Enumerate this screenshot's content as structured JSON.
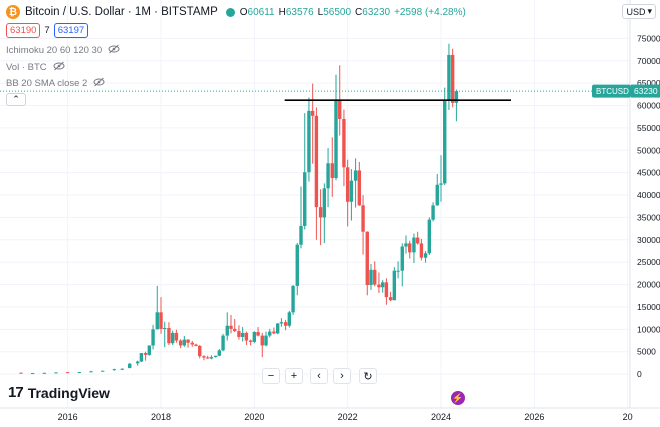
{
  "header": {
    "logo_glyph": "₿",
    "title": "Bitcoin / U.S. Dollar · 1M · BITSTAMP",
    "ohlc": [
      {
        "label": "O",
        "value": "60611"
      },
      {
        "label": "H",
        "value": "63576"
      },
      {
        "label": "L",
        "value": "56500"
      },
      {
        "label": "C",
        "value": "63230"
      },
      {
        "label": "",
        "value": "+2598 (+4.28%)"
      }
    ]
  },
  "prices": {
    "sell": "63190",
    "spread": "7",
    "buy": "63197"
  },
  "indicators": [
    {
      "label": "Ichimoku 20 60 120 30"
    },
    {
      "label": "Vol · BTC"
    },
    {
      "label": "BB 20 SMA close 2"
    }
  ],
  "currency_button": "USD",
  "collapse_glyph": "⌃",
  "price_tag": {
    "symbol": "BTCUSD",
    "value": "63230"
  },
  "nav_buttons": [
    {
      "name": "zoom-out-button",
      "glyph": "−"
    },
    {
      "name": "zoom-in-button",
      "glyph": "+"
    },
    {
      "name": "scroll-left-button",
      "glyph": "‹"
    },
    {
      "name": "scroll-right-button",
      "glyph": "›"
    },
    {
      "name": "reset-button",
      "glyph": "↻"
    }
  ],
  "branding": {
    "mark": "17",
    "text": "TradingView"
  },
  "colors": {
    "up": "#26a69a",
    "down": "#ef5350",
    "axis_text": "#131722",
    "dotted_line": "#26a69a"
  },
  "chart_data": {
    "type": "candlestick",
    "interval": "1M",
    "y_axis": {
      "ticks": [
        0,
        5000,
        10000,
        15000,
        20000,
        25000,
        30000,
        35000,
        40000,
        45000,
        50000,
        55000,
        60000,
        65000,
        70000,
        75000
      ],
      "range": [
        -4000,
        80000
      ]
    },
    "x_axis": {
      "ticks": [
        {
          "label": "2016",
          "t": 2016
        },
        {
          "label": "2018",
          "t": 2018
        },
        {
          "label": "2020",
          "t": 2020
        },
        {
          "label": "2022",
          "t": 2022
        },
        {
          "label": "2024",
          "t": 2024
        },
        {
          "label": "2026",
          "t": 2026
        },
        {
          "label": "20",
          "t": 2028
        }
      ],
      "range": [
        2014.55,
        2028.05
      ]
    },
    "last_price": 63230,
    "trendline": {
      "t1": 2020.65,
      "t2": 2025.5,
      "price": 61200
    },
    "candles": [
      {
        "t": 2015.0,
        "o": 320,
        "h": 340,
        "l": 200,
        "c": 220
      },
      {
        "t": 2015.25,
        "o": 220,
        "h": 260,
        "l": 210,
        "c": 240
      },
      {
        "t": 2015.5,
        "o": 240,
        "h": 300,
        "l": 220,
        "c": 280
      },
      {
        "t": 2015.75,
        "o": 280,
        "h": 420,
        "l": 260,
        "c": 380
      },
      {
        "t": 2016.0,
        "o": 430,
        "h": 450,
        "l": 370,
        "c": 420
      },
      {
        "t": 2016.25,
        "o": 420,
        "h": 460,
        "l": 410,
        "c": 450
      },
      {
        "t": 2016.5,
        "o": 600,
        "h": 760,
        "l": 560,
        "c": 620
      },
      {
        "t": 2016.75,
        "o": 620,
        "h": 760,
        "l": 600,
        "c": 740
      },
      {
        "t": 2017.0,
        "o": 960,
        "h": 1200,
        "l": 760,
        "c": 1100
      },
      {
        "t": 2017.17,
        "o": 1100,
        "h": 1300,
        "l": 900,
        "c": 1200
      },
      {
        "t": 2017.33,
        "o": 1350,
        "h": 2500,
        "l": 1300,
        "c": 2300
      },
      {
        "t": 2017.5,
        "o": 2400,
        "h": 3000,
        "l": 1900,
        "c": 2800
      },
      {
        "t": 2017.58,
        "o": 2800,
        "h": 4700,
        "l": 2700,
        "c": 4700
      },
      {
        "t": 2017.67,
        "o": 4700,
        "h": 5000,
        "l": 3000,
        "c": 4300
      },
      {
        "t": 2017.75,
        "o": 4300,
        "h": 6400,
        "l": 4100,
        "c": 6400
      },
      {
        "t": 2017.83,
        "o": 6400,
        "h": 11000,
        "l": 5500,
        "c": 10000
      },
      {
        "t": 2017.92,
        "o": 10000,
        "h": 19700,
        "l": 10000,
        "c": 13800
      },
      {
        "t": 2018.0,
        "o": 13800,
        "h": 17200,
        "l": 9000,
        "c": 10100
      },
      {
        "t": 2018.08,
        "o": 10100,
        "h": 11700,
        "l": 6000,
        "c": 10300
      },
      {
        "t": 2018.17,
        "o": 10300,
        "h": 11600,
        "l": 6500,
        "c": 6900
      },
      {
        "t": 2018.25,
        "o": 6900,
        "h": 9700,
        "l": 6500,
        "c": 9200
      },
      {
        "t": 2018.33,
        "o": 9200,
        "h": 9900,
        "l": 7000,
        "c": 7500
      },
      {
        "t": 2018.42,
        "o": 7500,
        "h": 7800,
        "l": 5800,
        "c": 6400
      },
      {
        "t": 2018.5,
        "o": 6400,
        "h": 8500,
        "l": 6100,
        "c": 7700
      },
      {
        "t": 2018.58,
        "o": 7700,
        "h": 7800,
        "l": 5900,
        "c": 7000
      },
      {
        "t": 2018.67,
        "o": 7000,
        "h": 7400,
        "l": 6100,
        "c": 6600
      },
      {
        "t": 2018.75,
        "o": 6600,
        "h": 6800,
        "l": 6200,
        "c": 6300
      },
      {
        "t": 2018.83,
        "o": 6300,
        "h": 6500,
        "l": 3500,
        "c": 4000
      },
      {
        "t": 2018.92,
        "o": 4000,
        "h": 4200,
        "l": 3100,
        "c": 3700
      },
      {
        "t": 2019.0,
        "o": 3700,
        "h": 4100,
        "l": 3400,
        "c": 3500
      },
      {
        "t": 2019.08,
        "o": 3500,
        "h": 4200,
        "l": 3300,
        "c": 3800
      },
      {
        "t": 2019.17,
        "o": 3800,
        "h": 4100,
        "l": 3700,
        "c": 4100
      },
      {
        "t": 2019.25,
        "o": 4100,
        "h": 5600,
        "l": 4000,
        "c": 5300
      },
      {
        "t": 2019.33,
        "o": 5300,
        "h": 9000,
        "l": 5100,
        "c": 8600
      },
      {
        "t": 2019.42,
        "o": 8600,
        "h": 13800,
        "l": 7500,
        "c": 10800
      },
      {
        "t": 2019.5,
        "o": 10800,
        "h": 13200,
        "l": 9100,
        "c": 10100
      },
      {
        "t": 2019.58,
        "o": 10100,
        "h": 12300,
        "l": 9400,
        "c": 9600
      },
      {
        "t": 2019.67,
        "o": 9600,
        "h": 10900,
        "l": 7700,
        "c": 8300
      },
      {
        "t": 2019.75,
        "o": 8300,
        "h": 10500,
        "l": 7300,
        "c": 9200
      },
      {
        "t": 2019.83,
        "o": 9200,
        "h": 9500,
        "l": 6500,
        "c": 7500
      },
      {
        "t": 2019.92,
        "o": 7500,
        "h": 7700,
        "l": 6400,
        "c": 7200
      },
      {
        "t": 2020.0,
        "o": 7200,
        "h": 9600,
        "l": 6900,
        "c": 9400
      },
      {
        "t": 2020.08,
        "o": 9400,
        "h": 10500,
        "l": 8400,
        "c": 8600
      },
      {
        "t": 2020.17,
        "o": 8600,
        "h": 9200,
        "l": 3800,
        "c": 6400
      },
      {
        "t": 2020.25,
        "o": 6400,
        "h": 9500,
        "l": 6200,
        "c": 8600
      },
      {
        "t": 2020.33,
        "o": 8600,
        "h": 10100,
        "l": 8200,
        "c": 9500
      },
      {
        "t": 2020.42,
        "o": 9500,
        "h": 10400,
        "l": 8900,
        "c": 9100
      },
      {
        "t": 2020.5,
        "o": 9100,
        "h": 11400,
        "l": 8900,
        "c": 11300
      },
      {
        "t": 2020.58,
        "o": 11300,
        "h": 12500,
        "l": 10600,
        "c": 11600
      },
      {
        "t": 2020.67,
        "o": 11600,
        "h": 12100,
        "l": 9800,
        "c": 10800
      },
      {
        "t": 2020.75,
        "o": 10800,
        "h": 14100,
        "l": 10400,
        "c": 13800
      },
      {
        "t": 2020.83,
        "o": 13800,
        "h": 19900,
        "l": 13200,
        "c": 19700
      },
      {
        "t": 2020.92,
        "o": 19700,
        "h": 29300,
        "l": 17600,
        "c": 28900
      },
      {
        "t": 2021.0,
        "o": 28900,
        "h": 41900,
        "l": 28100,
        "c": 33100
      },
      {
        "t": 2021.08,
        "o": 33100,
        "h": 58300,
        "l": 32300,
        "c": 45100
      },
      {
        "t": 2021.17,
        "o": 45100,
        "h": 61800,
        "l": 43000,
        "c": 58800
      },
      {
        "t": 2021.25,
        "o": 58800,
        "h": 64900,
        "l": 47000,
        "c": 57700
      },
      {
        "t": 2021.33,
        "o": 57700,
        "h": 59600,
        "l": 30000,
        "c": 37300
      },
      {
        "t": 2021.42,
        "o": 37300,
        "h": 41300,
        "l": 28800,
        "c": 35000
      },
      {
        "t": 2021.5,
        "o": 35000,
        "h": 42600,
        "l": 29300,
        "c": 41500
      },
      {
        "t": 2021.58,
        "o": 41500,
        "h": 50500,
        "l": 37300,
        "c": 47100
      },
      {
        "t": 2021.67,
        "o": 47100,
        "h": 52900,
        "l": 39600,
        "c": 43800
      },
      {
        "t": 2021.75,
        "o": 43800,
        "h": 66900,
        "l": 43300,
        "c": 61300
      },
      {
        "t": 2021.83,
        "o": 61300,
        "h": 69000,
        "l": 53300,
        "c": 57000
      },
      {
        "t": 2021.92,
        "o": 57000,
        "h": 59100,
        "l": 42000,
        "c": 46200
      },
      {
        "t": 2022.0,
        "o": 46200,
        "h": 47900,
        "l": 33000,
        "c": 38500
      },
      {
        "t": 2022.08,
        "o": 38500,
        "h": 45800,
        "l": 34300,
        "c": 43200
      },
      {
        "t": 2022.17,
        "o": 43200,
        "h": 48200,
        "l": 37200,
        "c": 45500
      },
      {
        "t": 2022.25,
        "o": 45500,
        "h": 47400,
        "l": 37600,
        "c": 37700
      },
      {
        "t": 2022.33,
        "o": 37700,
        "h": 40000,
        "l": 26700,
        "c": 31800
      },
      {
        "t": 2022.42,
        "o": 31800,
        "h": 31900,
        "l": 17600,
        "c": 19900
      },
      {
        "t": 2022.5,
        "o": 19900,
        "h": 24600,
        "l": 18800,
        "c": 23300
      },
      {
        "t": 2022.58,
        "o": 23300,
        "h": 25200,
        "l": 19600,
        "c": 20000
      },
      {
        "t": 2022.67,
        "o": 20000,
        "h": 22700,
        "l": 18100,
        "c": 19400
      },
      {
        "t": 2022.75,
        "o": 19400,
        "h": 21000,
        "l": 18200,
        "c": 20500
      },
      {
        "t": 2022.83,
        "o": 20500,
        "h": 21400,
        "l": 15500,
        "c": 17200
      },
      {
        "t": 2022.92,
        "o": 17200,
        "h": 18400,
        "l": 16300,
        "c": 16500
      },
      {
        "t": 2023.0,
        "o": 16500,
        "h": 23900,
        "l": 16500,
        "c": 23100
      },
      {
        "t": 2023.08,
        "o": 23100,
        "h": 25200,
        "l": 21400,
        "c": 23100
      },
      {
        "t": 2023.17,
        "o": 23100,
        "h": 29200,
        "l": 19600,
        "c": 28500
      },
      {
        "t": 2023.25,
        "o": 28500,
        "h": 31000,
        "l": 26900,
        "c": 29200
      },
      {
        "t": 2023.33,
        "o": 29200,
        "h": 29800,
        "l": 25800,
        "c": 27200
      },
      {
        "t": 2023.42,
        "o": 27200,
        "h": 31400,
        "l": 24800,
        "c": 30500
      },
      {
        "t": 2023.5,
        "o": 30500,
        "h": 31800,
        "l": 28900,
        "c": 29200
      },
      {
        "t": 2023.58,
        "o": 29200,
        "h": 30200,
        "l": 25400,
        "c": 26000
      },
      {
        "t": 2023.67,
        "o": 26000,
        "h": 27500,
        "l": 24900,
        "c": 27000
      },
      {
        "t": 2023.75,
        "o": 27000,
        "h": 35000,
        "l": 26600,
        "c": 34500
      },
      {
        "t": 2023.83,
        "o": 34500,
        "h": 38400,
        "l": 34100,
        "c": 37700
      },
      {
        "t": 2023.92,
        "o": 37700,
        "h": 44700,
        "l": 37600,
        "c": 42300
      },
      {
        "t": 2024.0,
        "o": 42300,
        "h": 48900,
        "l": 38500,
        "c": 42600
      },
      {
        "t": 2024.08,
        "o": 42600,
        "h": 64000,
        "l": 42200,
        "c": 61200
      },
      {
        "t": 2024.17,
        "o": 61200,
        "h": 73800,
        "l": 59000,
        "c": 71300
      },
      {
        "t": 2024.25,
        "o": 71300,
        "h": 72700,
        "l": 59600,
        "c": 60600
      },
      {
        "t": 2024.33,
        "o": 60611,
        "h": 63576,
        "l": 56500,
        "c": 63230
      }
    ]
  }
}
